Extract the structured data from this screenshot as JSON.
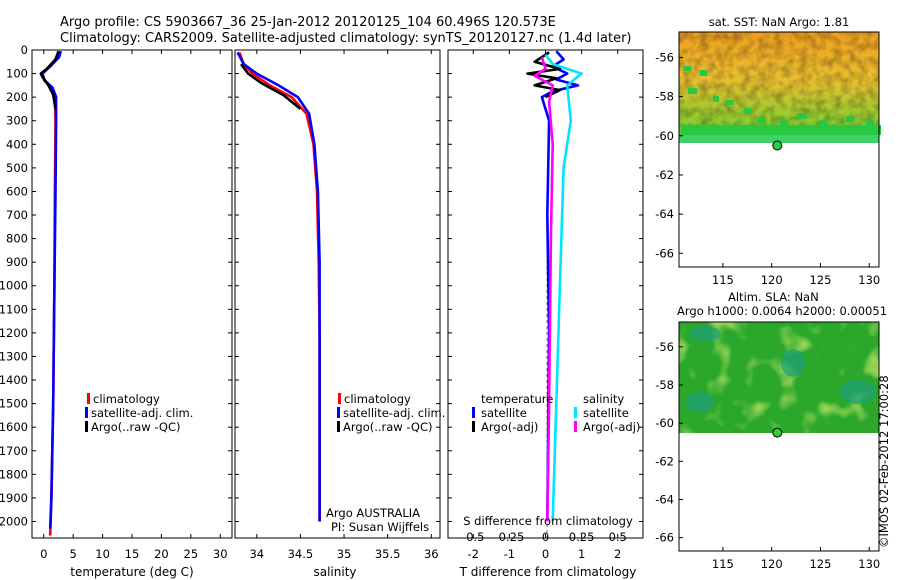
{
  "header": {
    "line1": "Argo profile: CS 5903667_36 25-Jan-2012 20120125_104 60.496S 120.573E",
    "line2": "Climatology: CARS2009. Satellite-adjusted climatology: synTS_20120127.nc (1.4d later)"
  },
  "credit": "©IMOS 02-Feb-2012 17:00:28",
  "colors": {
    "clim": "#ff0000",
    "sat": "#0000ff",
    "argo": "#000000",
    "sat_s": "#00e5ff",
    "argo_s": "#ff00ff"
  },
  "chart_data": [
    {
      "id": "temperature",
      "type": "line",
      "xlabel": "temperature (deg C)",
      "ylabel": "",
      "xlim": [
        -2,
        32
      ],
      "ylim": [
        2070,
        0
      ],
      "xticks": [
        "0",
        "5",
        "10",
        "15",
        "20",
        "25",
        "30"
      ],
      "xtick_values": [
        0,
        5,
        10,
        15,
        20,
        25,
        30
      ],
      "yticks": [
        "0",
        "100",
        "200",
        "300",
        "400",
        "500",
        "600",
        "700",
        "800",
        "900",
        "1000",
        "1100",
        "1200",
        "1300",
        "1400",
        "1500",
        "1600",
        "1700",
        "1800",
        "1900",
        "2000"
      ],
      "legend": [
        "climatology",
        "satellite-adj. clim.",
        "Argo(..raw -QC)"
      ],
      "series": [
        {
          "name": "climatology",
          "color": "#ff0000",
          "points": [
            [
              2.6,
              5
            ],
            [
              2.3,
              30
            ],
            [
              1.0,
              70
            ],
            [
              -0.2,
              100
            ],
            [
              0.1,
              130
            ],
            [
              1.3,
              160
            ],
            [
              1.9,
              200
            ],
            [
              2.0,
              300
            ],
            [
              1.9,
              600
            ],
            [
              1.8,
              1000
            ],
            [
              1.6,
              1500
            ],
            [
              1.3,
              1900
            ],
            [
              1.1,
              2060
            ]
          ]
        },
        {
          "name": "satellite-adj. clim.",
          "color": "#0000ff",
          "points": [
            [
              2.9,
              5
            ],
            [
              2.6,
              30
            ],
            [
              1.1,
              70
            ],
            [
              -0.3,
              100
            ],
            [
              0.2,
              130
            ],
            [
              1.5,
              160
            ],
            [
              2.1,
              200
            ],
            [
              2.1,
              300
            ],
            [
              2.0,
              600
            ],
            [
              1.8,
              1000
            ],
            [
              1.6,
              1500
            ],
            [
              1.3,
              1900
            ],
            [
              1.1,
              2030
            ]
          ]
        },
        {
          "name": "Argo(..raw -QC)",
          "color": "#000000",
          "points": [
            [
              2.5,
              5
            ],
            [
              2.0,
              40
            ],
            [
              0.5,
              80
            ],
            [
              -0.5,
              100
            ],
            [
              -0.2,
              115
            ],
            [
              0.8,
              150
            ],
            [
              1.6,
              190
            ],
            [
              2.0,
              250
            ]
          ]
        }
      ]
    },
    {
      "id": "salinity",
      "type": "line",
      "xlabel": "salinity",
      "ylabel": "",
      "xlim": [
        33.75,
        36.1
      ],
      "ylim": [
        2070,
        0
      ],
      "xticks": [
        "34",
        "34.5",
        "35",
        "35.5",
        "36"
      ],
      "xtick_values": [
        34,
        34.5,
        35,
        35.5,
        36
      ],
      "legend": [
        "climatology",
        "satellite-adj. clim.",
        "Argo(..raw -QC)"
      ],
      "annotation": [
        "Argo AUSTRALIA",
        "PI: Susan Wijffels"
      ],
      "series": [
        {
          "name": "climatology",
          "color": "#ff0000",
          "points": [
            [
              33.8,
              10
            ],
            [
              33.85,
              60
            ],
            [
              33.95,
              100
            ],
            [
              34.15,
              150
            ],
            [
              34.4,
              200
            ],
            [
              34.57,
              270
            ],
            [
              34.65,
              400
            ],
            [
              34.69,
              600
            ],
            [
              34.71,
              900
            ],
            [
              34.72,
              1200
            ],
            [
              34.72,
              2000
            ]
          ]
        },
        {
          "name": "satellite-adj. clim.",
          "color": "#0000ff",
          "points": [
            [
              33.78,
              10
            ],
            [
              33.85,
              60
            ],
            [
              34.0,
              100
            ],
            [
              34.25,
              150
            ],
            [
              34.47,
              200
            ],
            [
              34.6,
              270
            ],
            [
              34.66,
              400
            ],
            [
              34.7,
              600
            ],
            [
              34.72,
              900
            ],
            [
              34.72,
              1200
            ],
            [
              34.72,
              2000
            ]
          ]
        },
        {
          "name": "Argo(..raw -QC)",
          "color": "#000000",
          "points": [
            [
              33.82,
              60
            ],
            [
              33.9,
              100
            ],
            [
              34.05,
              140
            ],
            [
              34.3,
              190
            ],
            [
              34.5,
              250
            ]
          ]
        }
      ]
    },
    {
      "id": "difference",
      "type": "line",
      "xlabel": "T difference from climatology",
      "top_label": "S difference from climatology",
      "xlim": [
        -2.7,
        2.7
      ],
      "ylim": [
        2070,
        0
      ],
      "xticks": [
        "-2",
        "-1",
        "0",
        "1",
        "2"
      ],
      "xtick_values": [
        -2,
        -1,
        0,
        1,
        2
      ],
      "top_ticks": [
        "-0.5",
        "-0.25",
        "0",
        "0.25",
        "0.5"
      ],
      "top_tick_values": [
        -0.5,
        -0.25,
        0,
        0.25,
        0.5
      ],
      "legend_temperature": {
        "title": "temperature",
        "items": [
          "satellite",
          "Argo(-adj)"
        ]
      },
      "legend_salinity": {
        "title": "salinity",
        "items": [
          "satellite",
          "Argo(-adj)"
        ]
      },
      "series": [
        {
          "name": "T satellite",
          "color": "#0000ff",
          "points": [
            [
              0.3,
              5
            ],
            [
              0.5,
              40
            ],
            [
              0.2,
              70
            ],
            [
              0.6,
              100
            ],
            [
              0.3,
              125
            ],
            [
              0.9,
              150
            ],
            [
              0.2,
              175
            ],
            [
              -0.1,
              200
            ],
            [
              0.1,
              300
            ],
            [
              0.05,
              700
            ],
            [
              0.1,
              1200
            ],
            [
              0.05,
              2000
            ]
          ]
        },
        {
          "name": "T Argo(-adj)",
          "color": "#000000",
          "points": [
            [
              0.1,
              10
            ],
            [
              -0.3,
              50
            ],
            [
              0.4,
              80
            ],
            [
              -0.5,
              100
            ],
            [
              0.3,
              120
            ],
            [
              -0.3,
              150
            ],
            [
              0.4,
              170
            ],
            [
              0.0,
              200
            ]
          ]
        },
        {
          "name": "S satellite",
          "color": "#00e5ff",
          "points": [
            [
              0.0,
              20
            ],
            [
              0.2,
              60
            ],
            [
              1.0,
              100
            ],
            [
              0.6,
              150
            ],
            [
              0.7,
              300
            ],
            [
              0.5,
              500
            ],
            [
              0.4,
              1000
            ],
            [
              0.3,
              1500
            ],
            [
              0.2,
              2000
            ]
          ]
        },
        {
          "name": "S Argo(-adj)",
          "color": "#ff00ff",
          "points": [
            [
              -0.1,
              30
            ],
            [
              0.0,
              80
            ],
            [
              -0.3,
              110
            ],
            [
              0.2,
              150
            ],
            [
              0.1,
              220
            ],
            [
              0.2,
              400
            ],
            [
              0.15,
              800
            ],
            [
              0.1,
              1500
            ],
            [
              0.05,
              2000
            ]
          ]
        }
      ]
    },
    {
      "id": "sst-map",
      "type": "heatmap",
      "title": "sat. SST: NaN Argo: 1.81",
      "xlim": [
        110.5,
        131
      ],
      "ylim": [
        -66.7,
        -54.7
      ],
      "xticks": [
        "115",
        "120",
        "125",
        "130"
      ],
      "xtick_values": [
        115,
        120,
        125,
        130
      ],
      "yticks": [
        "-56",
        "-58",
        "-60",
        "-62",
        "-64",
        "-66"
      ],
      "ytick_values": [
        -56,
        -58,
        -60,
        -62,
        -64,
        -66
      ],
      "data_bottom_lat": -60,
      "marker": {
        "lon": 120.573,
        "lat": -60.496
      }
    },
    {
      "id": "sla-map",
      "type": "heatmap",
      "title": "Altim. SLA: NaN",
      "subtitle": "Argo h1000: 0.0064 h2000: 0.00051",
      "xlim": [
        110.5,
        131
      ],
      "ylim": [
        -66.7,
        -54.7
      ],
      "xticks": [
        "115",
        "120",
        "125",
        "130"
      ],
      "xtick_values": [
        115,
        120,
        125,
        130
      ],
      "yticks": [
        "-56",
        "-58",
        "-60",
        "-62",
        "-64",
        "-66"
      ],
      "ytick_values": [
        -56,
        -58,
        -60,
        -62,
        -64,
        -66
      ],
      "data_bottom_lat": -60,
      "marker": {
        "lon": 120.573,
        "lat": -60.496
      }
    }
  ]
}
